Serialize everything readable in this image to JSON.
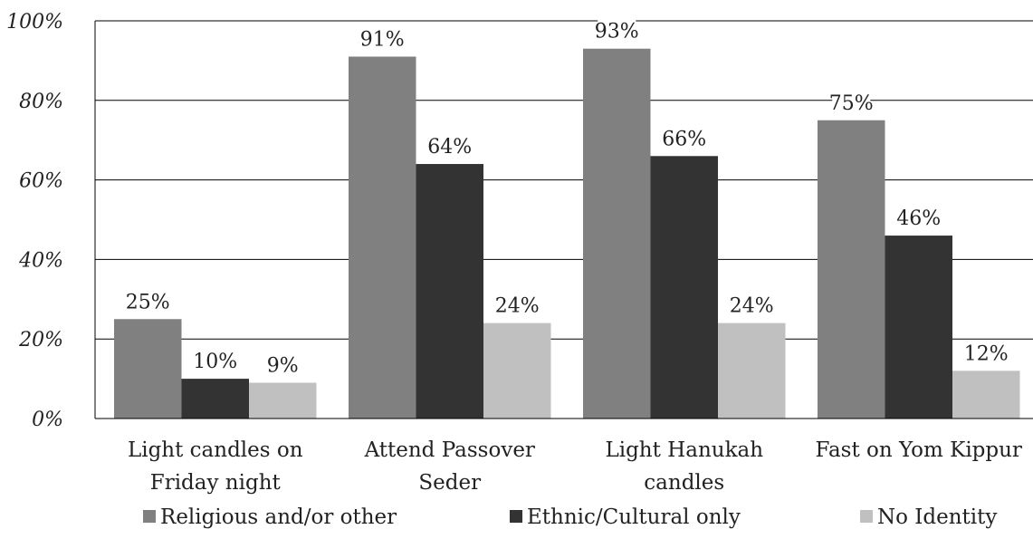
{
  "chart_data": {
    "type": "bar",
    "categories": [
      [
        "Light candles on",
        "Friday night"
      ],
      [
        "Attend Passover",
        "Seder"
      ],
      [
        "Light Hanukah",
        "candles"
      ],
      [
        "Fast on Yom Kippur"
      ]
    ],
    "series": [
      {
        "name": "Religious and/or other",
        "color": "#808080",
        "values": [
          25,
          91,
          93,
          75
        ]
      },
      {
        "name": "Ethnic/Cultural only",
        "color": "#333333",
        "values": [
          10,
          64,
          66,
          46
        ]
      },
      {
        "name": "No Identity",
        "color": "#c0c0c0",
        "values": [
          9,
          24,
          24,
          12
        ]
      }
    ],
    "data_labels": [
      [
        "25%",
        "91%",
        "93%",
        "75%"
      ],
      [
        "10%",
        "64%",
        "66%",
        "46%"
      ],
      [
        "9%",
        "24%",
        "24%",
        "12%"
      ]
    ],
    "y_ticks": [
      {
        "value": 0,
        "label": "0%"
      },
      {
        "value": 20,
        "label": "20%"
      },
      {
        "value": 40,
        "label": "40%"
      },
      {
        "value": 60,
        "label": "60%"
      },
      {
        "value": 80,
        "label": "80%"
      },
      {
        "value": 100,
        "label": "100%"
      }
    ],
    "ylim": [
      0,
      100
    ],
    "grid": true,
    "legend_position": "bottom",
    "title": "",
    "xlabel": "",
    "ylabel": ""
  }
}
